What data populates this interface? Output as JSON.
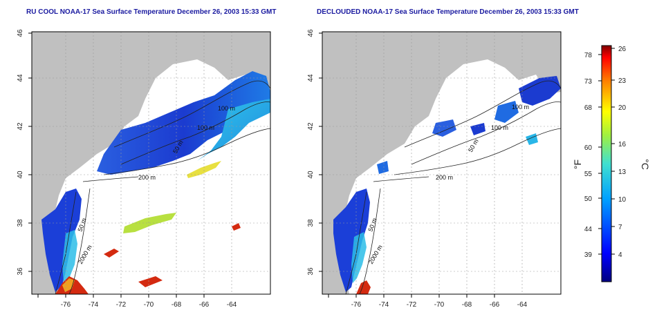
{
  "titles": {
    "left": "RU COOL NOAA-17 Sea Surface Temperature December 26, 2003 15:33 GMT",
    "right": "DECLOUDED NOAA-17 Sea Surface Temperature December 26, 2003 15:33 GMT"
  },
  "axes": {
    "lon_ticks": [
      "-76",
      "-74",
      "-72",
      "-70",
      "-68",
      "-66",
      "-64"
    ],
    "lat_ticks": [
      "46",
      "44",
      "42",
      "40",
      "38",
      "36"
    ]
  },
  "contour_labels": {
    "c100a": "100 m",
    "c100b": "100 m",
    "c50a": "50 m",
    "c200": "200 m",
    "c50b": "50 m",
    "c2000": "2000 m"
  },
  "colorbar": {
    "fahrenheit_ticks": [
      "78",
      "73",
      "68",
      "60",
      "55",
      "50",
      "44",
      "39"
    ],
    "celsius_ticks": [
      "26",
      "23",
      "20",
      "16",
      "13",
      "10",
      "7",
      "4"
    ],
    "unit_f": "°F",
    "unit_c": "°C"
  },
  "colors": {
    "land": "#c0c0c0",
    "cold": "#1f3fd6",
    "mid": "#29b6e8",
    "warm": "#d42a10"
  }
}
